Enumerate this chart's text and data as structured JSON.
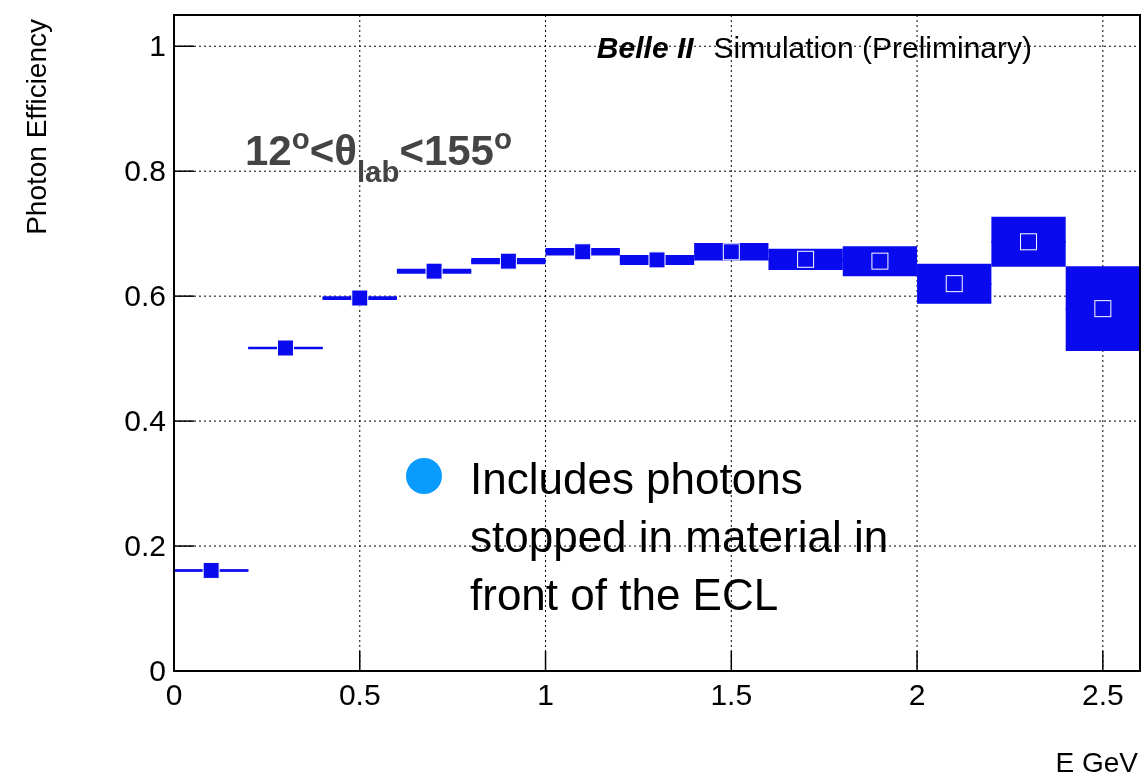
{
  "chart_data": {
    "type": "scatter",
    "title": "Belle II",
    "subtitle": "Simulation (Preliminary)",
    "xlabel": "E GeV",
    "ylabel": "Photon Efficiency",
    "annotations": [
      "12$^{o}$<θ$_{lab}$<155$^{o}$",
      "Includes photons stopped in material in front of the ECL"
    ],
    "x": [
      0.1,
      0.3,
      0.5,
      0.7,
      0.9,
      1.1,
      1.3,
      1.5,
      1.7,
      1.9,
      2.1,
      2.3,
      2.5
    ],
    "series": [
      {
        "color": "#0a0aef",
        "values": [
          0.161,
          0.517,
          0.597,
          0.64,
          0.656,
          0.671,
          0.658,
          0.671,
          0.659,
          0.656,
          0.62,
          0.687,
          0.58
        ],
        "errors": [
          0.002,
          0.002,
          0.003,
          0.004,
          0.005,
          0.006,
          0.008,
          0.014,
          0.017,
          0.024,
          0.032,
          0.04,
          0.068
        ],
        "xerrors": [
          0.1,
          0.1,
          0.1,
          0.1,
          0.1,
          0.1,
          0.1,
          0.1,
          0.1,
          0.1,
          0.1,
          0.1,
          0.1
        ]
      }
    ],
    "xlim": [
      0,
      2.6
    ],
    "ylim": [
      0,
      1.05
    ],
    "xticks": [
      0,
      0.5,
      1,
      1.5,
      2,
      2.5
    ],
    "yticks": [
      0,
      0.2,
      0.4,
      0.6,
      0.8,
      1
    ],
    "grid": true,
    "marker": "square"
  }
}
